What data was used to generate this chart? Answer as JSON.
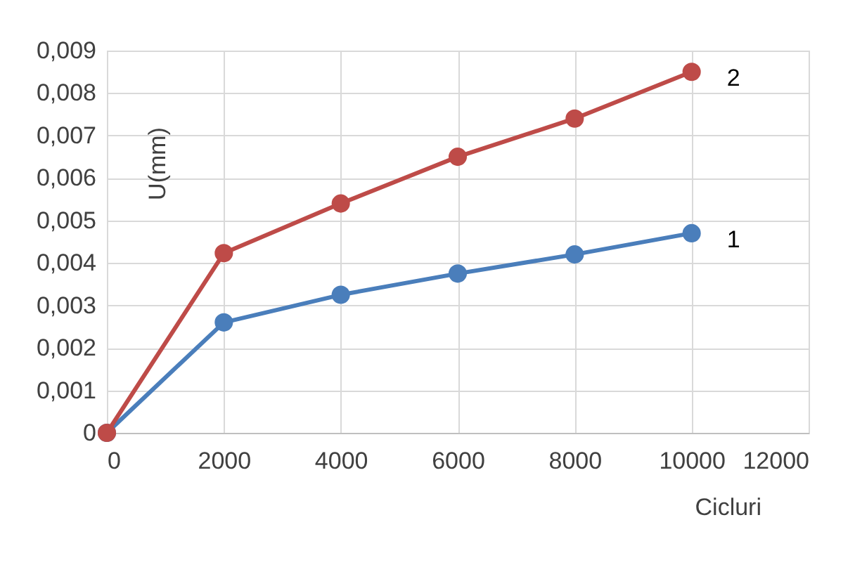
{
  "chart_data": {
    "type": "line",
    "xlabel": "Cicluri",
    "ylabel": "U(mm)",
    "x": [
      0,
      2000,
      4000,
      6000,
      8000,
      10000
    ],
    "series": [
      {
        "name": "1",
        "color": "#4a7ebb",
        "values": [
          0,
          0.0026,
          0.00325,
          0.00375,
          0.0042,
          0.0047
        ]
      },
      {
        "name": "2",
        "color": "#be4b48",
        "values": [
          0,
          0.00423,
          0.0054,
          0.0065,
          0.0074,
          0.0085
        ]
      }
    ],
    "xlim": [
      0,
      12000
    ],
    "xticks": [
      0,
      2000,
      4000,
      6000,
      8000,
      10000,
      12000
    ],
    "ylim": [
      0,
      0.009
    ],
    "yticks": [
      0,
      {
        "value": 0.001,
        "label": "0,001"
      },
      {
        "value": 0.002,
        "label": "0,002"
      },
      {
        "value": 0.003,
        "label": "0,003"
      },
      {
        "value": 0.004,
        "label": "0,004"
      },
      {
        "value": 0.005,
        "label": "0,005"
      },
      {
        "value": 0.006,
        "label": "0,006"
      },
      {
        "value": 0.007,
        "label": "0,007"
      },
      {
        "value": 0.008,
        "label": "0,008"
      },
      {
        "value": 0.009,
        "label": "0,009"
      }
    ],
    "grid": true,
    "marker": "circle",
    "line_style": "solid"
  }
}
